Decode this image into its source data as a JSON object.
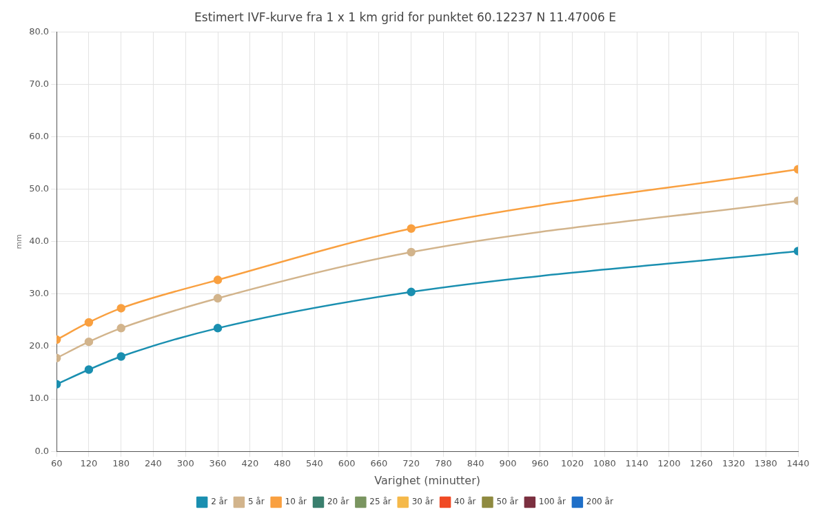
{
  "chart_data": {
    "type": "line",
    "title": "Estimert IVF-kurve fra 1 x 1 km grid for punktet 60.12237 N 11.47006 E",
    "xlabel": "Varighet (minutter)",
    "ylabel": "mm",
    "x": [
      60,
      120,
      180,
      360,
      720,
      1440
    ],
    "series": [
      {
        "name": "2 år",
        "color": "#1a8fb0",
        "values": [
          12.8,
          15.6,
          18.1,
          23.5,
          30.4,
          38.2
        ]
      },
      {
        "name": "5 år",
        "color": "#d2b48c",
        "values": [
          17.8,
          20.9,
          23.5,
          29.2,
          38.0,
          47.8
        ]
      },
      {
        "name": "10 år",
        "color": "#f9a040",
        "values": [
          21.3,
          24.6,
          27.3,
          32.7,
          42.5,
          53.8
        ]
      },
      {
        "name": "20 år",
        "color": "#3a7f6e",
        "values": [
          null,
          null,
          null,
          null,
          null,
          null
        ]
      },
      {
        "name": "25 år",
        "color": "#7a9560",
        "values": [
          null,
          null,
          null,
          null,
          null,
          null
        ]
      },
      {
        "name": "30 år",
        "color": "#f5b94a",
        "values": [
          null,
          null,
          null,
          null,
          null,
          null
        ]
      },
      {
        "name": "40 år",
        "color": "#f04a25",
        "values": [
          null,
          null,
          null,
          null,
          null,
          null
        ]
      },
      {
        "name": "50 år",
        "color": "#8f8a40",
        "values": [
          null,
          null,
          null,
          null,
          null,
          null
        ]
      },
      {
        "name": "100 år",
        "color": "#7b3040",
        "values": [
          null,
          null,
          null,
          null,
          null,
          null
        ]
      },
      {
        "name": "200 år",
        "color": "#1f6fc8",
        "values": [
          null,
          null,
          null,
          null,
          null,
          null
        ]
      }
    ],
    "xlim": [
      60,
      1440
    ],
    "xticks": [
      60,
      120,
      180,
      240,
      300,
      360,
      420,
      480,
      540,
      600,
      660,
      720,
      780,
      840,
      900,
      960,
      1020,
      1080,
      1140,
      1200,
      1260,
      1320,
      1380,
      1440
    ],
    "ylim": [
      0,
      80
    ],
    "yticks": [
      {
        "value": 0,
        "label": "0.0"
      },
      {
        "value": 10,
        "label": "10.0"
      },
      {
        "value": 20,
        "label": "20.0"
      },
      {
        "value": 30,
        "label": "30.0"
      },
      {
        "value": 40,
        "label": "40.0"
      },
      {
        "value": 50,
        "label": "50.0"
      },
      {
        "value": 60,
        "label": "60.0"
      },
      {
        "value": 70,
        "label": "70.0"
      },
      {
        "value": 80,
        "label": "80.0"
      }
    ],
    "grid": true,
    "legend": "bottom",
    "marker": "circle",
    "line_style": "solid"
  }
}
